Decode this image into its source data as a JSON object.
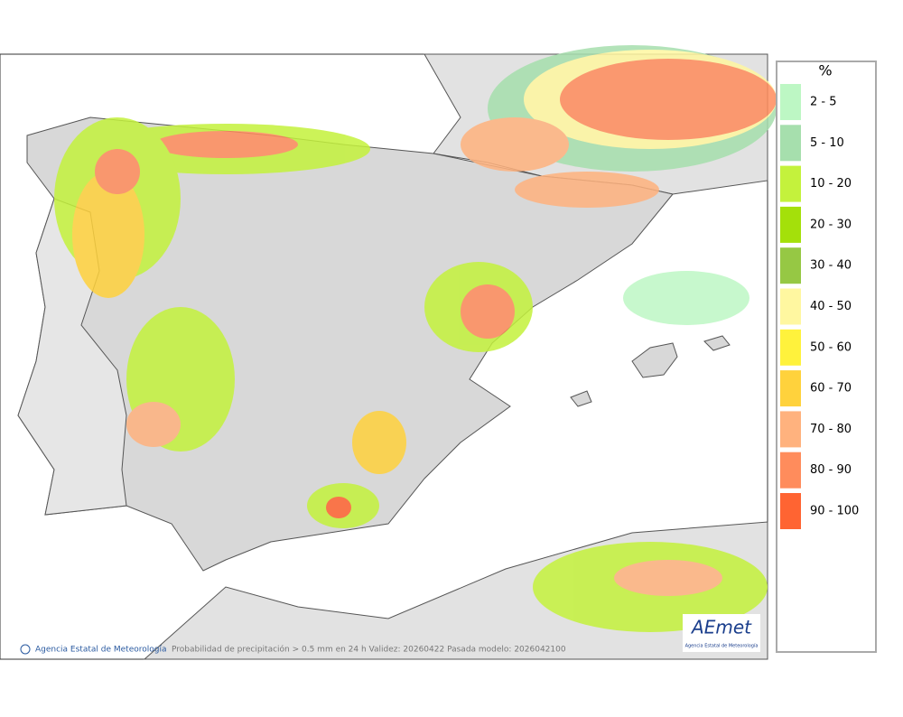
{
  "legend": {
    "title": "%",
    "items": [
      {
        "label": "2 - 5",
        "color": "#bdf7c4"
      },
      {
        "label": "5 - 10",
        "color": "#a6dfad"
      },
      {
        "label": "10 - 20",
        "color": "#c4f23c"
      },
      {
        "label": "20 - 30",
        "color": "#a4e00a"
      },
      {
        "label": "30 - 40",
        "color": "#96c844"
      },
      {
        "label": "40 - 50",
        "color": "#fff7a0"
      },
      {
        "label": "50 - 60",
        "color": "#fff23c"
      },
      {
        "label": "60 - 70",
        "color": "#ffd23c"
      },
      {
        "label": "70 - 80",
        "color": "#ffb27e"
      },
      {
        "label": "80 - 90",
        "color": "#ff8c5c"
      },
      {
        "label": "90 - 100",
        "color": "#ff6432"
      }
    ]
  },
  "footer": {
    "credit": "Agencia Estatal de Meteorología",
    "caption": "Probabilidad de precipitación > 0.5 mm en 24 h Validez: 20260422 Pasada modelo: 2026042100"
  },
  "logo": {
    "name": "AEmet",
    "subtitle": "Agencia Estatal de Meteorología"
  }
}
